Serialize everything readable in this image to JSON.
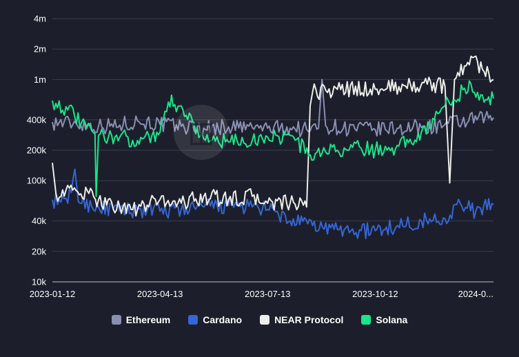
{
  "chart_data": {
    "type": "line",
    "title": "",
    "xlabel": "",
    "ylabel": "",
    "y_scale": "log",
    "ylim": [
      10000,
      4000000
    ],
    "y_ticks": [
      {
        "value": 10000,
        "label": "10k"
      },
      {
        "value": 20000,
        "label": "20k"
      },
      {
        "value": 40000,
        "label": "40k"
      },
      {
        "value": 100000,
        "label": "100k"
      },
      {
        "value": 200000,
        "label": "200k"
      },
      {
        "value": 400000,
        "label": "400k"
      },
      {
        "value": 1000000,
        "label": "1m"
      },
      {
        "value": 2000000,
        "label": "2m"
      },
      {
        "value": 4000000,
        "label": "4m"
      }
    ],
    "x_range": [
      "2023-01-12",
      "2024-01-20"
    ],
    "x_ticks": [
      {
        "date": "2023-01-12",
        "label": "2023-01-12"
      },
      {
        "date": "2023-04-13",
        "label": "2023-04-13"
      },
      {
        "date": "2023-07-13",
        "label": "2023-07-13"
      },
      {
        "date": "2023-10-12",
        "label": "2023-10-12"
      },
      {
        "date": "2024-01-11",
        "label": "2024-0..."
      }
    ],
    "grid": true,
    "legend_position": "bottom",
    "series": [
      {
        "name": "Ethereum",
        "color": "#8a8fb3",
        "points": [
          [
            "2023-01-12",
            380000
          ],
          [
            "2023-02-01",
            370000
          ],
          [
            "2023-02-20",
            345000
          ],
          [
            "2023-03-10",
            355000
          ],
          [
            "2023-03-25",
            390000
          ],
          [
            "2023-04-13",
            360000
          ],
          [
            "2023-05-01",
            345000
          ],
          [
            "2023-05-20",
            330000
          ],
          [
            "2023-06-10",
            340000
          ],
          [
            "2023-06-30",
            335000
          ],
          [
            "2023-07-13",
            330000
          ],
          [
            "2023-08-01",
            330000
          ],
          [
            "2023-08-15",
            320000
          ],
          [
            "2023-08-25",
            330000
          ],
          [
            "2023-08-28",
            1000000
          ],
          [
            "2023-08-31",
            350000
          ],
          [
            "2023-09-15",
            330000
          ],
          [
            "2023-10-12",
            320000
          ],
          [
            "2023-11-01",
            330000
          ],
          [
            "2023-11-20",
            335000
          ],
          [
            "2023-12-10",
            360000
          ],
          [
            "2023-12-30",
            390000
          ],
          [
            "2024-01-20",
            420000
          ]
        ]
      },
      {
        "name": "Cardano",
        "color": "#3565d6",
        "points": [
          [
            "2023-01-12",
            65000
          ],
          [
            "2023-01-25",
            60000
          ],
          [
            "2023-01-31",
            130000
          ],
          [
            "2023-02-03",
            62000
          ],
          [
            "2023-02-20",
            55000
          ],
          [
            "2023-03-10",
            50000
          ],
          [
            "2023-03-25",
            52000
          ],
          [
            "2023-04-13",
            50000
          ],
          [
            "2023-05-01",
            52000
          ],
          [
            "2023-05-20",
            55000
          ],
          [
            "2023-06-10",
            57000
          ],
          [
            "2023-06-30",
            55000
          ],
          [
            "2023-07-13",
            52000
          ],
          [
            "2023-08-01",
            40000
          ],
          [
            "2023-08-20",
            36000
          ],
          [
            "2023-09-10",
            33000
          ],
          [
            "2023-09-30",
            32000
          ],
          [
            "2023-10-12",
            32000
          ],
          [
            "2023-10-31",
            36000
          ],
          [
            "2023-11-20",
            40000
          ],
          [
            "2023-12-10",
            42000
          ],
          [
            "2023-12-20",
            58000
          ],
          [
            "2024-01-05",
            50000
          ],
          [
            "2024-01-20",
            58000
          ]
        ]
      },
      {
        "name": "NEAR Protocol",
        "color": "#eeeeea",
        "points": [
          [
            "2023-01-12",
            150000
          ],
          [
            "2023-01-15",
            75000
          ],
          [
            "2023-02-01",
            80000
          ],
          [
            "2023-02-20",
            65000
          ],
          [
            "2023-03-10",
            55000
          ],
          [
            "2023-03-25",
            52000
          ],
          [
            "2023-04-13",
            65000
          ],
          [
            "2023-05-01",
            60000
          ],
          [
            "2023-05-20",
            70000
          ],
          [
            "2023-06-10",
            65000
          ],
          [
            "2023-06-30",
            70000
          ],
          [
            "2023-07-13",
            60000
          ],
          [
            "2023-08-01",
            60000
          ],
          [
            "2023-08-15",
            55000
          ],
          [
            "2023-08-18",
            550000
          ],
          [
            "2023-08-20",
            750000
          ],
          [
            "2023-09-10",
            800000
          ],
          [
            "2023-10-12",
            800000
          ],
          [
            "2023-11-01",
            850000
          ],
          [
            "2023-11-25",
            900000
          ],
          [
            "2023-12-10",
            850000
          ],
          [
            "2023-12-14",
            95000
          ],
          [
            "2023-12-18",
            1000000
          ],
          [
            "2024-01-01",
            1700000
          ],
          [
            "2024-01-12",
            1200000
          ],
          [
            "2024-01-20",
            1000000
          ]
        ]
      },
      {
        "name": "Solana",
        "color": "#19e58c",
        "points": [
          [
            "2023-01-12",
            620000
          ],
          [
            "2023-01-25",
            500000
          ],
          [
            "2023-02-10",
            330000
          ],
          [
            "2023-02-17",
            290000
          ],
          [
            "2023-02-18",
            70000
          ],
          [
            "2023-02-20",
            280000
          ],
          [
            "2023-03-10",
            270000
          ],
          [
            "2023-03-25",
            250000
          ],
          [
            "2023-04-13",
            300000
          ],
          [
            "2023-04-20",
            600000
          ],
          [
            "2023-05-01",
            550000
          ],
          [
            "2023-05-20",
            260000
          ],
          [
            "2023-06-10",
            240000
          ],
          [
            "2023-06-30",
            250000
          ],
          [
            "2023-07-13",
            270000
          ],
          [
            "2023-08-01",
            280000
          ],
          [
            "2023-08-18",
            180000
          ],
          [
            "2023-09-10",
            200000
          ],
          [
            "2023-09-30",
            210000
          ],
          [
            "2023-10-12",
            200000
          ],
          [
            "2023-11-01",
            220000
          ],
          [
            "2023-11-20",
            300000
          ],
          [
            "2023-12-01",
            400000
          ],
          [
            "2023-12-10",
            550000
          ],
          [
            "2024-01-01",
            900000
          ],
          [
            "2024-01-12",
            600000
          ],
          [
            "2024-01-20",
            650000
          ]
        ]
      }
    ]
  }
}
